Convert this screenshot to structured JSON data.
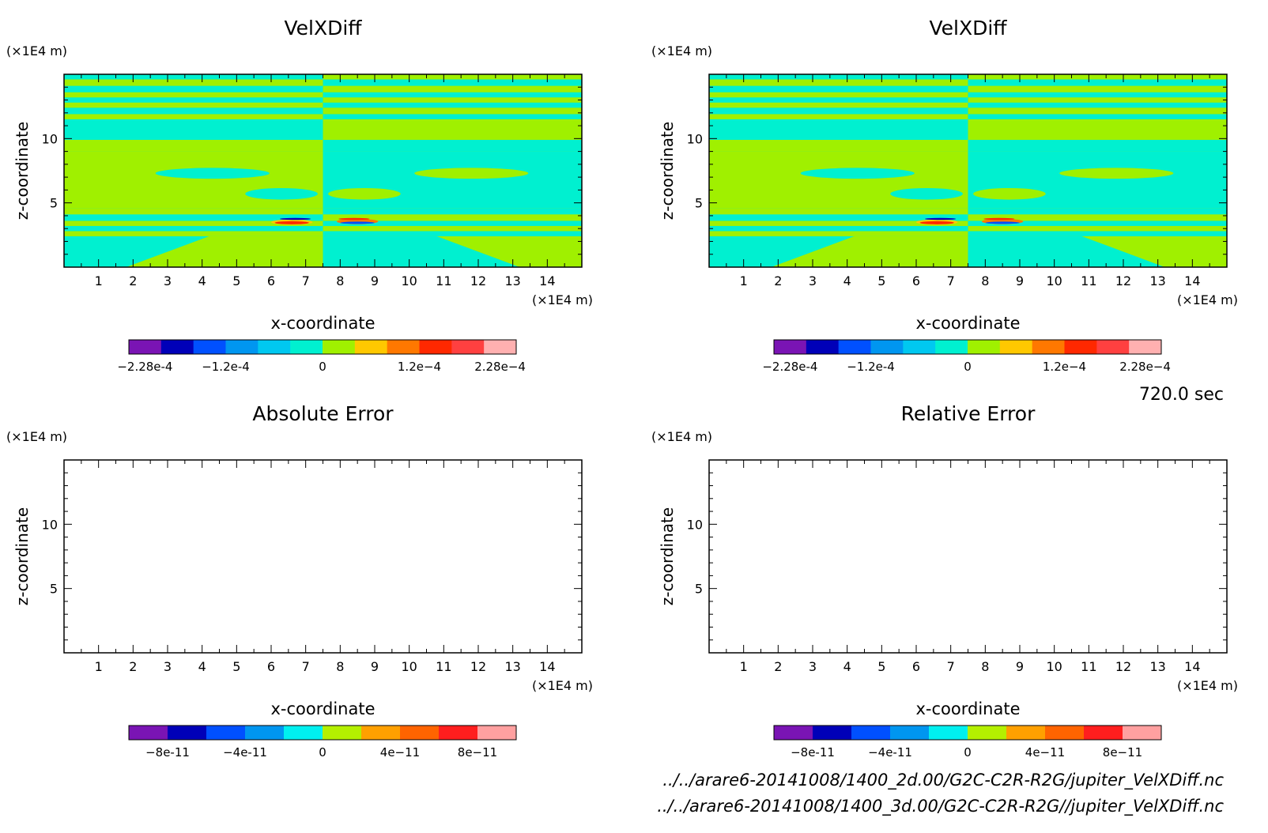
{
  "time_label": "720.0 sec",
  "files": [
    "../../arare6-20141008/1400_2d.00/G2C-C2R-R2G/jupiter_VelXDiff.nc",
    "../../arare6-20141008/1400_3d.00/G2C-C2R-R2G//jupiter_VelXDiff.nc"
  ],
  "chart_data": [
    {
      "type": "heatmap",
      "title": "VelXDiff",
      "xlabel": "x-coordinate",
      "ylabel": "z-coordinate",
      "x_unit": "(×1E4 m)",
      "y_unit": "(×1E4 m)",
      "xlim": [
        0,
        15
      ],
      "ylim": [
        0,
        15
      ],
      "xticks": [
        1,
        2,
        3,
        4,
        5,
        6,
        7,
        8,
        9,
        10,
        11,
        12,
        13,
        14
      ],
      "yticks": [
        5,
        10
      ],
      "colorbar": {
        "colors": [
          "#7a14b4",
          "#0000b8",
          "#0050ff",
          "#0096f0",
          "#00c8f0",
          "#00f0d0",
          "#a0f000",
          "#ffc800",
          "#ff7800",
          "#ff2800",
          "#ff4040",
          "#ffb0b0"
        ],
        "ticks": [
          -0.000228,
          -0.00012,
          0,
          0.00012,
          0.000228
        ],
        "tick_labels": [
          "-2.28e-4",
          "-1.2e-4",
          "0",
          "1.2e-4",
          "2.28e-4"
        ]
      },
      "pattern": "horizontal bands alternating between small positive and small negative values; anomaly pair near x=7.5, z≈3.5"
    },
    {
      "type": "heatmap",
      "title": "VelXDiff",
      "xlabel": "x-coordinate",
      "ylabel": "z-coordinate",
      "x_unit": "(×1E4 m)",
      "y_unit": "(×1E4 m)",
      "xlim": [
        0,
        15
      ],
      "ylim": [
        0,
        15
      ],
      "xticks": [
        1,
        2,
        3,
        4,
        5,
        6,
        7,
        8,
        9,
        10,
        11,
        12,
        13,
        14
      ],
      "yticks": [
        5,
        10
      ],
      "colorbar": {
        "colors": [
          "#7a14b4",
          "#0000b8",
          "#0050ff",
          "#0096f0",
          "#00c8f0",
          "#00f0d0",
          "#a0f000",
          "#ffc800",
          "#ff7800",
          "#ff2800",
          "#ff4040",
          "#ffb0b0"
        ],
        "ticks": [
          -0.000228,
          -0.00012,
          0,
          0.00012,
          0.000228
        ],
        "tick_labels": [
          "-2.28e-4",
          "-1.2e-4",
          "0",
          "1.2e-4",
          "2.28e-4"
        ]
      },
      "pattern": "identical to left panel"
    },
    {
      "type": "heatmap",
      "title": "Absolute Error",
      "xlabel": "x-coordinate",
      "ylabel": "z-coordinate",
      "x_unit": "(×1E4 m)",
      "y_unit": "(×1E4 m)",
      "xlim": [
        0,
        15
      ],
      "ylim": [
        0,
        15
      ],
      "xticks": [
        1,
        2,
        3,
        4,
        5,
        6,
        7,
        8,
        9,
        10,
        11,
        12,
        13,
        14
      ],
      "yticks": [
        5,
        10
      ],
      "colorbar": {
        "colors": [
          "#7a14b4",
          "#0000b8",
          "#0050ff",
          "#0096f0",
          "#00f0f0",
          "#b4f000",
          "#ffa000",
          "#ff6400",
          "#ff1e1e",
          "#ffa0a0"
        ],
        "ticks": [
          -8e-11,
          -4e-11,
          0,
          4e-11,
          8e-11
        ],
        "tick_labels": [
          "-8e-11",
          "-4e-11",
          "0",
          "4e-11",
          "8e-11"
        ]
      },
      "values": "empty (all zero)"
    },
    {
      "type": "heatmap",
      "title": "Relative Error",
      "xlabel": "x-coordinate",
      "ylabel": "z-coordinate",
      "x_unit": "(×1E4 m)",
      "y_unit": "(×1E4 m)",
      "xlim": [
        0,
        15
      ],
      "ylim": [
        0,
        15
      ],
      "xticks": [
        1,
        2,
        3,
        4,
        5,
        6,
        7,
        8,
        9,
        10,
        11,
        12,
        13,
        14
      ],
      "yticks": [
        5,
        10
      ],
      "colorbar": {
        "colors": [
          "#7a14b4",
          "#0000b8",
          "#0050ff",
          "#0096f0",
          "#00f0f0",
          "#b4f000",
          "#ffa000",
          "#ff6400",
          "#ff1e1e",
          "#ffa0a0"
        ],
        "ticks": [
          -8e-11,
          -4e-11,
          0,
          4e-11,
          8e-11
        ],
        "tick_labels": [
          "-8e-11",
          "-4e-11",
          "0",
          "4e-11",
          "8e-11"
        ]
      },
      "values": "empty (all zero)"
    }
  ]
}
